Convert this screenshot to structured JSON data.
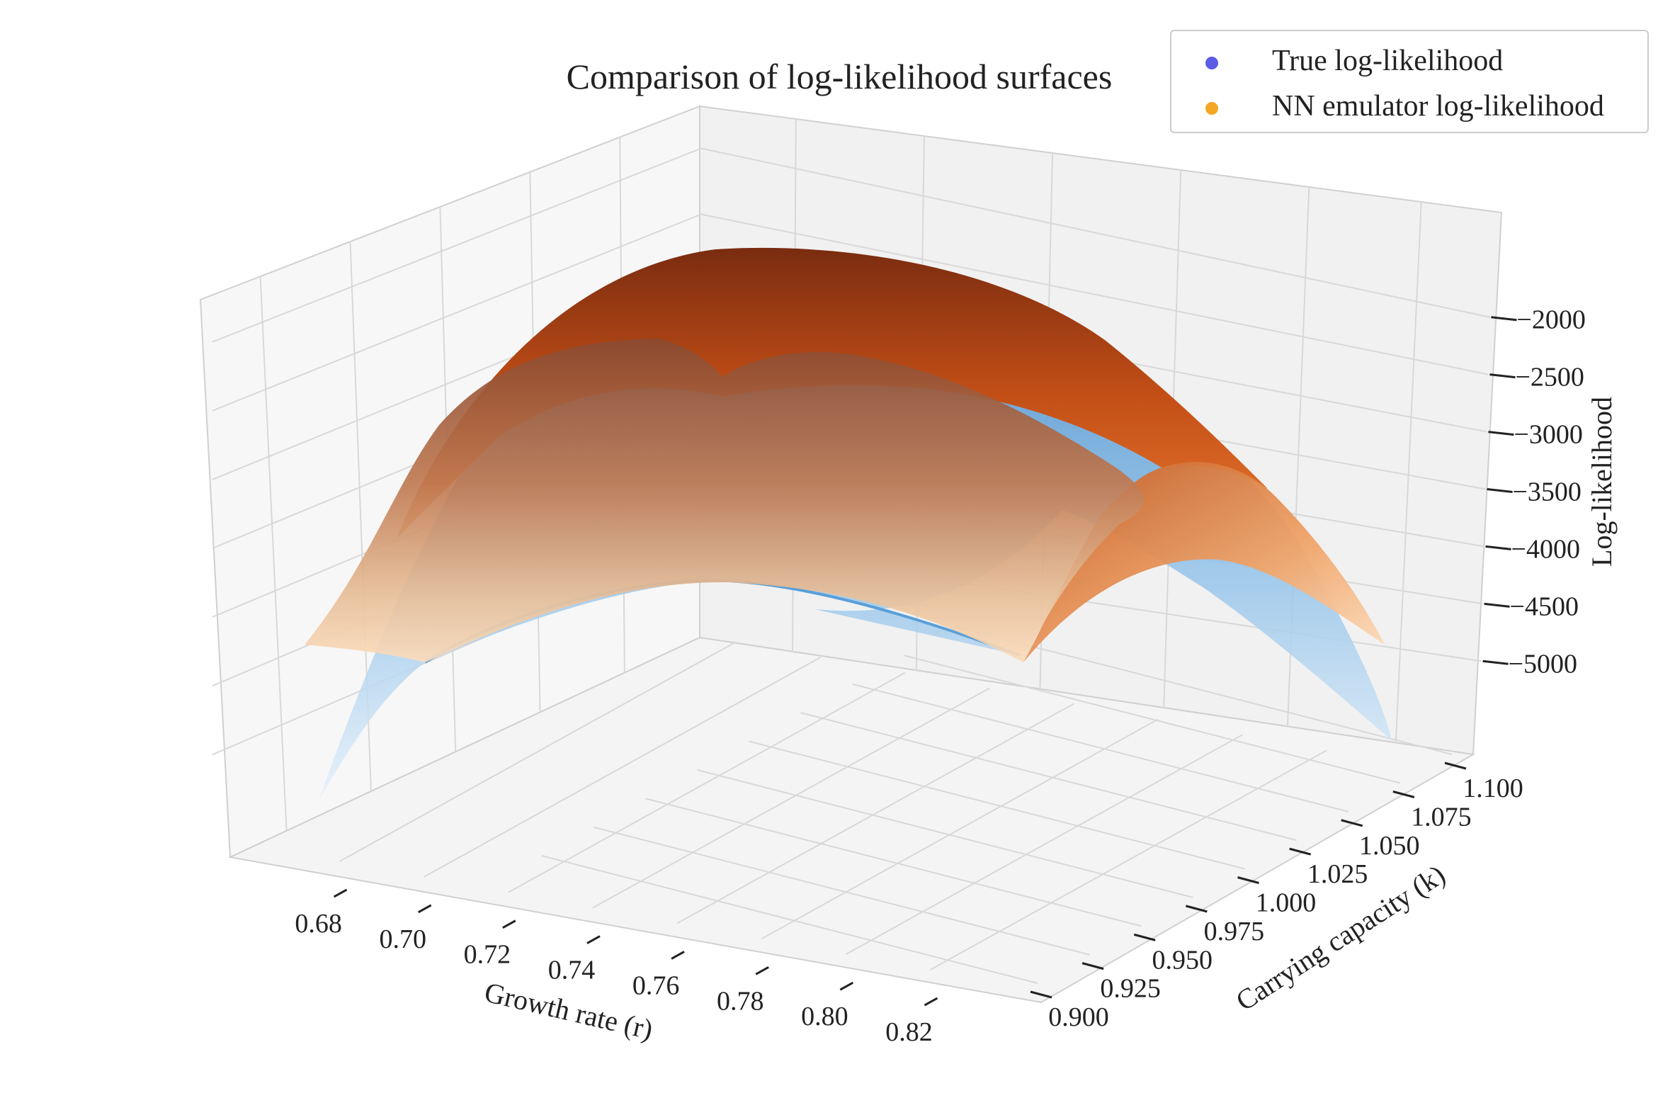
{
  "chart_data": {
    "type": "surface3d",
    "title": "Comparison of log-likelihood surfaces",
    "xlabel": "Growth rate (r)",
    "ylabel": "Carrying capacity (k)",
    "zlabel": "Log-likelihood",
    "xlim": [
      0.67,
      0.83
    ],
    "ylim": [
      0.9,
      1.1
    ],
    "zlim": [
      -5400,
      -1600
    ],
    "x_ticks": [
      "0.68",
      "0.70",
      "0.72",
      "0.74",
      "0.76",
      "0.78",
      "0.80",
      "0.82"
    ],
    "y_ticks": [
      "0.900",
      "0.925",
      "0.950",
      "0.975",
      "1.000",
      "1.025",
      "1.050",
      "1.075",
      "1.100"
    ],
    "z_ticks": [
      "−2000",
      "−2500",
      "−3000",
      "−3500",
      "−4000",
      "−4500",
      "−5000"
    ],
    "grid": true,
    "legend_position": "top-right",
    "series": [
      {
        "name": "True log-likelihood",
        "marker_color": "#5b5be6",
        "surface_color_high": "#2f7fc4",
        "surface_color_low": "#dcebf8",
        "peak": {
          "r": 0.75,
          "k": 1.0,
          "loglik": -1750
        },
        "corner_values": [
          {
            "r": 0.67,
            "k": 0.9,
            "loglik": -5400
          },
          {
            "r": 0.83,
            "k": 0.9,
            "loglik": -4400
          },
          {
            "r": 0.67,
            "k": 1.1,
            "loglik": -4800
          },
          {
            "r": 0.83,
            "k": 1.1,
            "loglik": -5300
          }
        ]
      },
      {
        "name": "NN emulator log-likelihood",
        "marker_color": "#f5a623",
        "surface_color_high": "#7a2c10",
        "surface_color_low": "#fcd7b0",
        "peak": {
          "r": 0.75,
          "k": 1.0,
          "loglik": -1750
        },
        "corner_values": [
          {
            "r": 0.67,
            "k": 0.9,
            "loglik": -4400
          },
          {
            "r": 0.83,
            "k": 0.9,
            "loglik": -4000
          },
          {
            "r": 0.67,
            "k": 1.1,
            "loglik": -4000
          },
          {
            "r": 0.83,
            "k": 1.1,
            "loglik": -4400
          }
        ]
      }
    ]
  }
}
